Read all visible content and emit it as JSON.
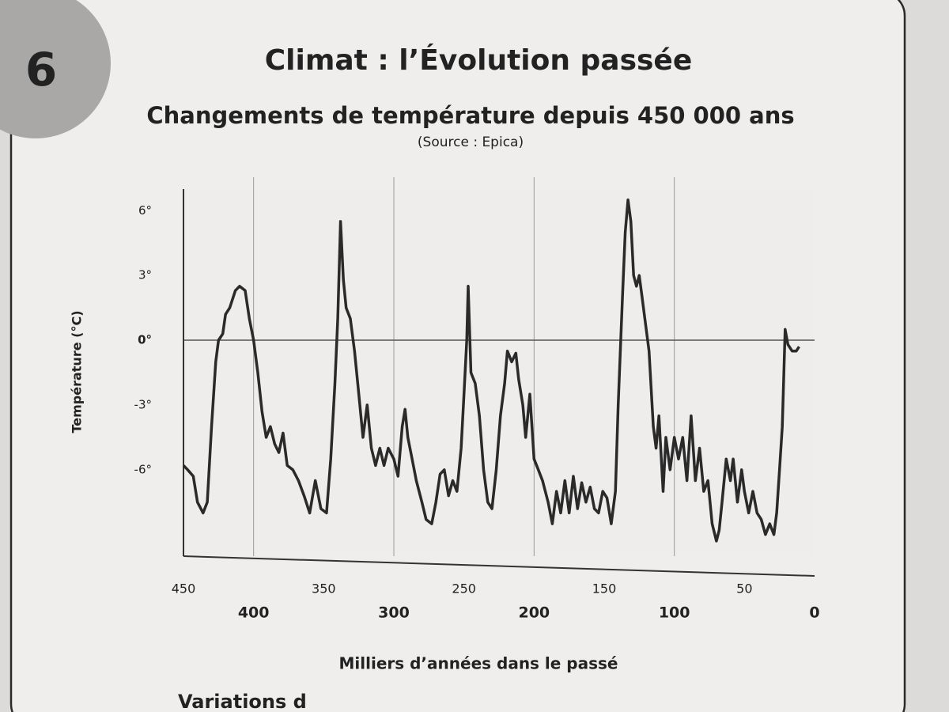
{
  "badge": "6",
  "footer_text": "Variations d",
  "chart_data": {
    "type": "line",
    "title": "Climat : l’Évolution passée",
    "subtitle": "Changements de température depuis 450 000 ans",
    "source": "(Source : Epica)",
    "x_label": "Milliers d’années dans le passé",
    "y_label": "Température (°C)",
    "color": "#2a2a2a",
    "zero_line": true,
    "x": [
      450,
      447,
      443,
      440,
      436,
      433,
      430,
      427,
      425,
      422,
      420,
      417,
      413,
      410,
      406,
      403,
      400,
      397,
      394,
      391,
      388,
      385,
      382,
      379,
      376,
      372,
      368,
      364,
      360,
      356,
      352,
      348,
      345,
      342,
      340,
      338,
      336,
      334,
      331,
      328,
      325,
      322,
      319,
      316,
      313,
      310,
      307,
      304,
      300,
      297,
      294,
      292,
      290,
      287,
      284,
      280,
      277,
      273,
      270,
      267,
      264,
      261,
      258,
      255,
      252,
      250,
      248,
      247,
      245,
      242,
      239,
      236,
      233,
      230,
      227,
      224,
      221,
      219,
      216,
      213,
      211,
      208,
      206,
      203,
      200,
      197,
      194,
      190,
      187,
      184,
      181,
      178,
      175,
      172,
      169,
      166,
      163,
      160,
      157,
      154,
      151,
      148,
      145,
      142,
      140,
      137,
      135,
      133,
      131,
      129,
      127,
      125,
      123,
      121,
      118,
      115,
      113,
      111,
      108,
      106,
      103,
      100,
      97,
      94,
      91,
      88,
      85,
      82,
      79,
      76,
      73,
      70,
      68,
      66,
      63,
      60,
      58,
      55,
      52,
      50,
      47,
      44,
      41,
      38,
      35,
      32,
      29,
      27,
      25,
      23,
      21,
      19,
      16,
      13,
      11
    ],
    "values": [
      -5.8,
      -6.0,
      -6.3,
      -7.5,
      -8.0,
      -7.5,
      -4.0,
      -1.0,
      0.0,
      0.3,
      1.2,
      1.5,
      2.3,
      2.5,
      2.3,
      1.0,
      0.0,
      -1.5,
      -3.3,
      -4.5,
      -4.0,
      -4.8,
      -5.2,
      -4.3,
      -5.8,
      -6.0,
      -6.5,
      -7.2,
      -8.0,
      -6.5,
      -7.8,
      -8.0,
      -5.5,
      -2.0,
      1.0,
      5.5,
      2.8,
      1.5,
      1.0,
      -0.5,
      -2.5,
      -4.5,
      -3.0,
      -5.0,
      -5.8,
      -5.0,
      -5.8,
      -5.0,
      -5.5,
      -6.3,
      -4.0,
      -3.2,
      -4.5,
      -5.5,
      -6.5,
      -7.5,
      -8.3,
      -8.5,
      -7.5,
      -6.2,
      -6.0,
      -7.2,
      -6.5,
      -7.0,
      -5.0,
      -2.5,
      0.0,
      2.5,
      -1.5,
      -2.0,
      -3.5,
      -6.0,
      -7.5,
      -7.8,
      -6.0,
      -3.5,
      -2.0,
      -0.5,
      -1.0,
      -0.6,
      -1.8,
      -3.0,
      -4.5,
      -2.5,
      -5.5,
      -6.0,
      -6.5,
      -7.5,
      -8.5,
      -7.0,
      -8.0,
      -6.5,
      -8.0,
      -6.3,
      -7.8,
      -6.6,
      -7.5,
      -6.8,
      -7.8,
      -8.0,
      -7.0,
      -7.3,
      -8.5,
      -7.0,
      -3.0,
      2.0,
      5.0,
      6.5,
      5.5,
      3.0,
      2.5,
      3.0,
      2.0,
      1.0,
      -0.5,
      -4.0,
      -5.0,
      -3.5,
      -7.0,
      -4.5,
      -6.0,
      -4.5,
      -5.5,
      -4.5,
      -6.5,
      -3.5,
      -6.5,
      -5.0,
      -7.0,
      -6.5,
      -8.5,
      -9.3,
      -8.8,
      -7.5,
      -5.5,
      -6.5,
      -5.5,
      -7.5,
      -6.0,
      -7.0,
      -8.0,
      -7.0,
      -8.0,
      -8.3,
      -9.0,
      -8.5,
      -9.0,
      -8.0,
      -6.0,
      -4.0,
      0.5,
      -0.2,
      -0.5,
      -0.5,
      -0.3
    ],
    "xlim": [
      450,
      0
    ],
    "xticks": [
      450,
      400,
      350,
      300,
      250,
      200,
      150,
      100,
      50,
      0
    ],
    "ylim": [
      -10,
      7
    ],
    "yticks": [
      {
        "value": 6,
        "label": "6°"
      },
      {
        "value": 3,
        "label": "3°"
      },
      {
        "value": 0,
        "label": "0°"
      },
      {
        "value": -3,
        "label": "-3°"
      },
      {
        "value": -6,
        "label": "-6°"
      }
    ]
  }
}
